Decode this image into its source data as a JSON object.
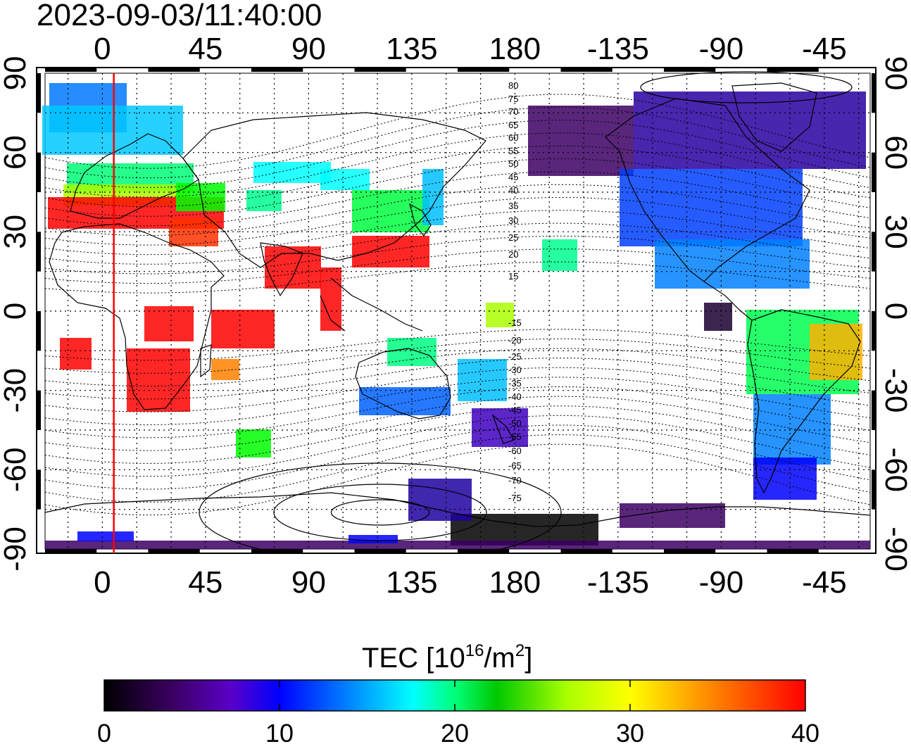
{
  "title": "2023-09-03/11:40:00",
  "map": {
    "x_ticks_top": [
      "0",
      "45",
      "90",
      "135",
      "180",
      "-135",
      "-90",
      "-45"
    ],
    "x_ticks_bottom": [
      "0",
      "45",
      "90",
      "135",
      "180",
      "-135",
      "-90",
      "-45"
    ],
    "y_ticks_left": [
      "90",
      "60",
      "30",
      "0",
      "-30",
      "-60",
      "-90"
    ],
    "y_ticks_right": [
      "90",
      "60",
      "30",
      "0",
      "-30",
      "-60",
      "-90"
    ],
    "lon_range": [
      -25,
      335
    ],
    "lat_range": [
      -90,
      90
    ],
    "grid": "dotted",
    "subsolar_line_lon": 5,
    "subsolar_line_color": "#ff0000",
    "contour_labels_north": [
      "80",
      "75",
      "70",
      "65",
      "60",
      "55",
      "50",
      "45",
      "40",
      "35",
      "30",
      "25",
      "20",
      "15"
    ],
    "contour_labels_south": [
      "-15",
      "-20",
      "-25",
      "-30",
      "-35",
      "-40",
      "-45",
      "-50",
      "-55",
      "-60",
      "-65",
      "-70",
      "-75"
    ]
  },
  "colorbar": {
    "label_main": "TEC  [10",
    "label_sup1": "16",
    "label_mid": "/m",
    "label_sup2": "2",
    "label_end": "]",
    "ticks": [
      "0",
      "10",
      "20",
      "30",
      "40"
    ],
    "range": [
      0,
      40
    ],
    "colors": [
      "#000000",
      "#3c0064",
      "#5a00c8",
      "#0000ff",
      "#0078ff",
      "#00ffff",
      "#00ff78",
      "#00c800",
      "#aaff00",
      "#ffff00",
      "#ff9600",
      "#ff0000"
    ]
  }
}
